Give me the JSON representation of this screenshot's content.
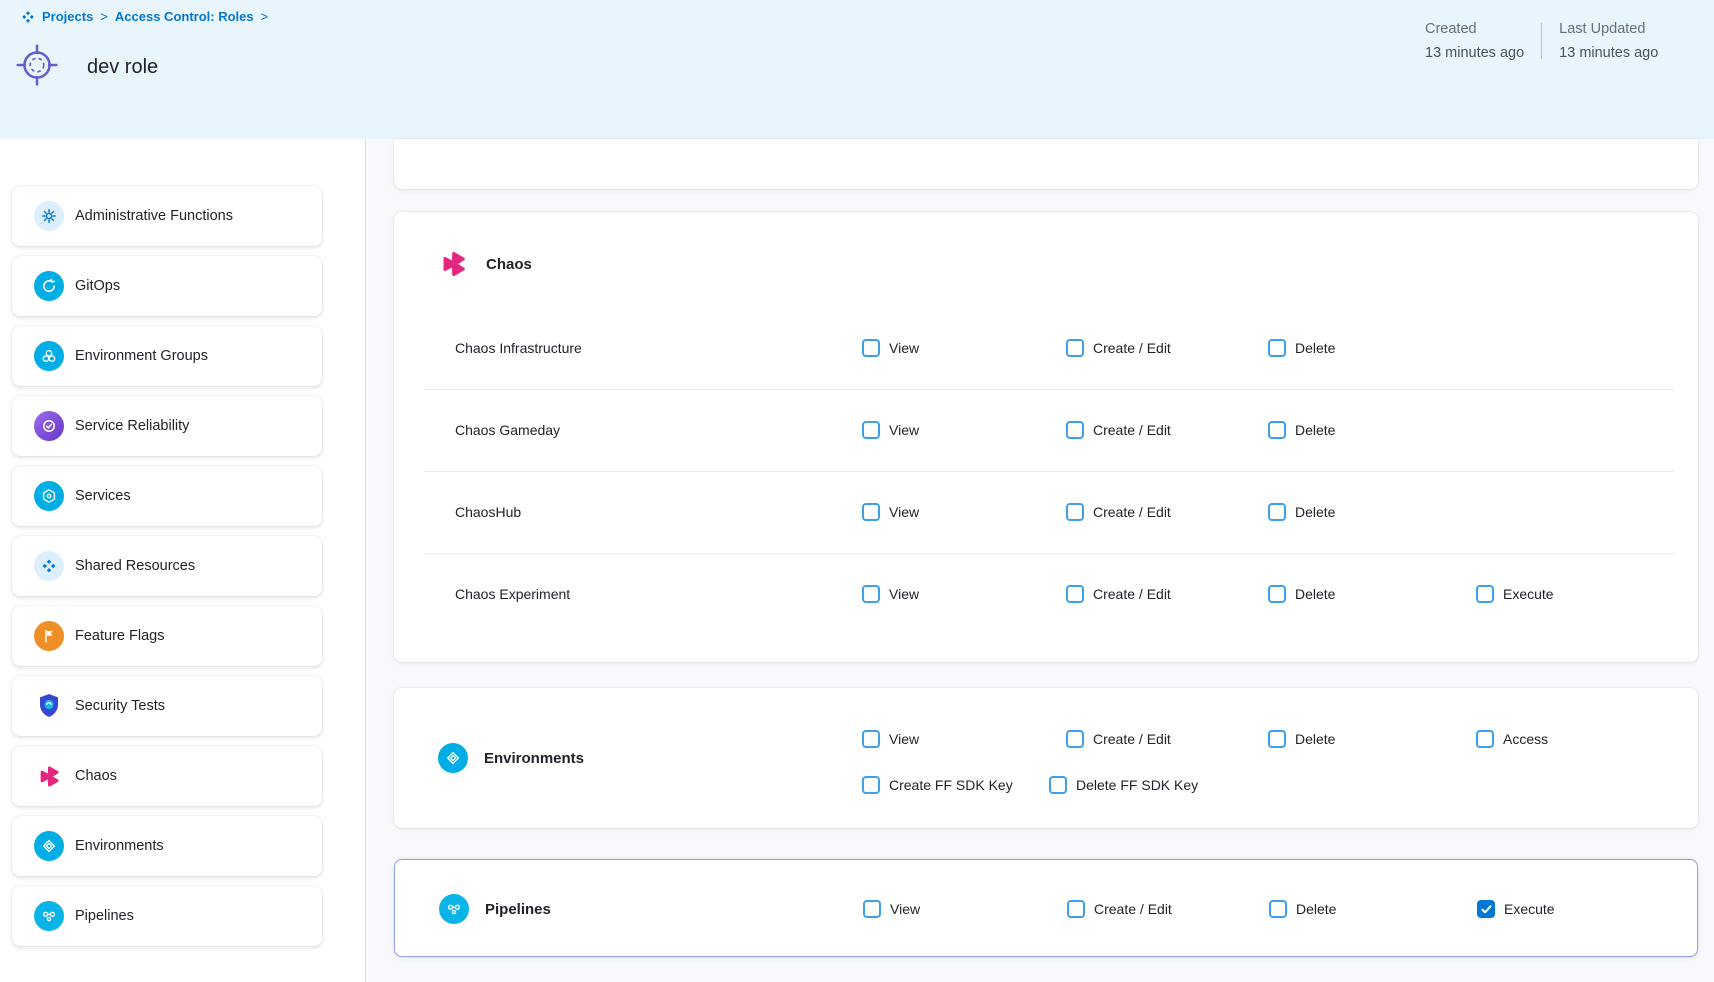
{
  "colors": {
    "accent_blue": "#0278d5",
    "header_bg": "#e9f5fc",
    "main_bg": "#f8f9fc",
    "checkbox_border": "#3da0e8",
    "checkbox_checked": "#0278d5",
    "card_highlight_border": "#97a2f0",
    "icon_cyan": "#00ade4",
    "icon_orange": "#ee8f28",
    "pipelines_cyan": "#0bb4e8",
    "chaos_pink": "#e3277e",
    "security_blue": "#3946d1",
    "role_icon_purple": "#675cc9"
  },
  "breadcrumb": {
    "separator": ">",
    "items": [
      "Projects",
      "Access Control: Roles"
    ]
  },
  "page": {
    "title": "dev role"
  },
  "meta": {
    "created_label": "Created",
    "created_value": "13 minutes ago",
    "updated_label": "Last Updated",
    "updated_value": "13 minutes ago"
  },
  "sidebar": {
    "items": [
      {
        "label": "Administrative Functions",
        "icon": "gear"
      },
      {
        "label": "GitOps",
        "icon": "gitops"
      },
      {
        "label": "Environment Groups",
        "icon": "env-groups"
      },
      {
        "label": "Service Reliability",
        "icon": "reliability"
      },
      {
        "label": "Services",
        "icon": "services"
      },
      {
        "label": "Shared Resources",
        "icon": "shared"
      },
      {
        "label": "Feature Flags",
        "icon": "flag"
      },
      {
        "label": "Security Tests",
        "icon": "security"
      },
      {
        "label": "Chaos",
        "icon": "chaos"
      },
      {
        "label": "Environments",
        "icon": "environments"
      },
      {
        "label": "Pipelines",
        "icon": "pipelines"
      }
    ]
  },
  "main": {
    "sections": [
      {
        "key": "chaos",
        "layout": "grouped",
        "title": "Chaos",
        "icon": "chaos",
        "highlighted": false,
        "rows": [
          {
            "label": "Chaos Infrastructure",
            "perms": [
              {
                "label": "View",
                "checked": false
              },
              {
                "label": "Create / Edit",
                "checked": false
              },
              {
                "label": "Delete",
                "checked": false
              }
            ]
          },
          {
            "label": "Chaos Gameday",
            "perms": [
              {
                "label": "View",
                "checked": false
              },
              {
                "label": "Create / Edit",
                "checked": false
              },
              {
                "label": "Delete",
                "checked": false
              }
            ]
          },
          {
            "label": "ChaosHub",
            "perms": [
              {
                "label": "View",
                "checked": false
              },
              {
                "label": "Create / Edit",
                "checked": false
              },
              {
                "label": "Delete",
                "checked": false
              }
            ]
          },
          {
            "label": "Chaos Experiment",
            "perms": [
              {
                "label": "View",
                "checked": false
              },
              {
                "label": "Create / Edit",
                "checked": false
              },
              {
                "label": "Delete",
                "checked": false
              },
              {
                "label": "Execute",
                "checked": false
              }
            ]
          }
        ]
      },
      {
        "key": "environments",
        "layout": "inline",
        "title": "Environments",
        "icon": "environments",
        "highlighted": false,
        "perm_lines": [
          [
            {
              "label": "View",
              "checked": false
            },
            {
              "label": "Create / Edit",
              "checked": false
            },
            {
              "label": "Delete",
              "checked": false
            },
            {
              "label": "Access",
              "checked": false
            }
          ],
          [
            {
              "label": "Create FF SDK Key",
              "checked": false
            },
            {
              "label": "Delete FF SDK Key",
              "checked": false
            }
          ]
        ]
      },
      {
        "key": "pipelines",
        "layout": "inline",
        "title": "Pipelines",
        "icon": "pipelines",
        "highlighted": true,
        "perm_lines": [
          [
            {
              "label": "View",
              "checked": false
            },
            {
              "label": "Create / Edit",
              "checked": false
            },
            {
              "label": "Delete",
              "checked": false
            },
            {
              "label": "Execute",
              "checked": true
            }
          ]
        ]
      }
    ]
  }
}
